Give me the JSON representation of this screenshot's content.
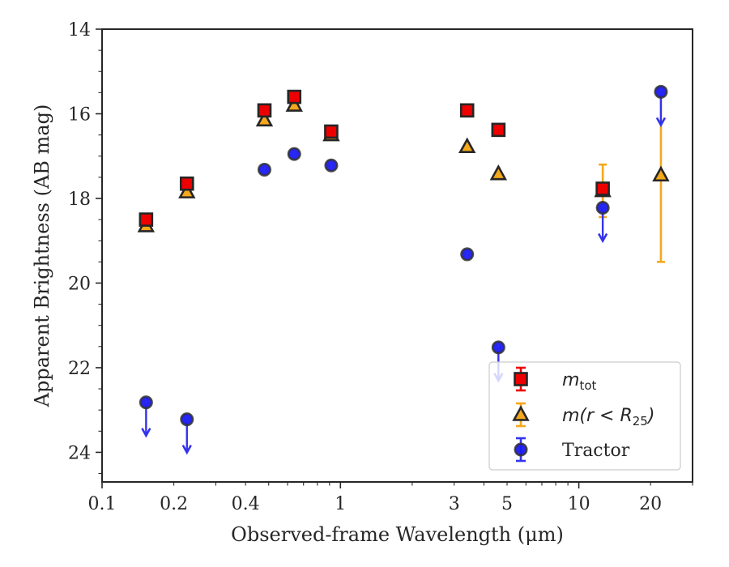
{
  "chart_data": {
    "type": "scatter",
    "xlabel": "Observed-frame Wavelength (μm)",
    "ylabel": "Apparent Brightness (AB mag)",
    "xscale": "log",
    "xlim": [
      0.1,
      30
    ],
    "ylim": [
      24.7,
      14
    ],
    "y_inverted": true,
    "grid": false,
    "legend_position": "lower-right",
    "x_ticks": [
      {
        "value": 0.1,
        "label": "0.1"
      },
      {
        "value": 0.2,
        "label": "0.2"
      },
      {
        "value": 0.4,
        "label": "0.4"
      },
      {
        "value": 1,
        "label": "1"
      },
      {
        "value": 3,
        "label": "3"
      },
      {
        "value": 5,
        "label": "5"
      },
      {
        "value": 10,
        "label": "10"
      },
      {
        "value": 20,
        "label": "20"
      }
    ],
    "y_ticks": [
      {
        "value": 14,
        "label": "14"
      },
      {
        "value": 16,
        "label": "16"
      },
      {
        "value": 18,
        "label": "18"
      },
      {
        "value": 20,
        "label": "20"
      },
      {
        "value": 22,
        "label": "22"
      },
      {
        "value": 24,
        "label": "24"
      }
    ],
    "series": [
      {
        "key": "mtot",
        "legend_main": "m",
        "legend_sub": "tot",
        "legend_tail": "",
        "marker": "square",
        "color": "#ee0000",
        "edge": "#262626",
        "points": [
          {
            "x": 0.153,
            "y": 18.5,
            "err": 0.05
          },
          {
            "x": 0.227,
            "y": 17.65,
            "err": 0.05
          },
          {
            "x": 0.48,
            "y": 15.92,
            "err": 0.05
          },
          {
            "x": 0.64,
            "y": 15.6,
            "err": 0.05
          },
          {
            "x": 0.915,
            "y": 16.42,
            "err": 0.05
          },
          {
            "x": 3.4,
            "y": 15.92,
            "err": 0.05
          },
          {
            "x": 4.6,
            "y": 16.38,
            "err": 0.05
          },
          {
            "x": 12.6,
            "y": 17.77,
            "err": 0.05
          }
        ]
      },
      {
        "key": "m_r25",
        "legend_main": "m(r < R",
        "legend_sub": "25",
        "legend_tail": ")",
        "marker": "triangle",
        "color": "#f5a81c",
        "edge": "#262626",
        "points": [
          {
            "x": 0.153,
            "y": 18.65,
            "err": 0.04
          },
          {
            "x": 0.227,
            "y": 17.85,
            "err": 0.04
          },
          {
            "x": 0.48,
            "y": 16.15,
            "err": 0.04
          },
          {
            "x": 0.64,
            "y": 15.8,
            "err": 0.04
          },
          {
            "x": 0.915,
            "y": 16.5,
            "err": 0.04
          },
          {
            "x": 3.4,
            "y": 16.78,
            "err": 0.04
          },
          {
            "x": 4.6,
            "y": 17.42,
            "err": 0.04
          },
          {
            "x": 12.6,
            "y": 17.82,
            "err": 0.62
          },
          {
            "x": 22.1,
            "y": 17.45,
            "err": 2.05
          }
        ]
      },
      {
        "key": "tractor",
        "legend_main": "Tractor",
        "legend_sub": "",
        "legend_tail": "",
        "marker": "circle",
        "color": "#1a1aee",
        "edge": "#333333",
        "upper_limit_color": "#3333ee",
        "points": [
          {
            "x": 0.153,
            "y": 22.82,
            "upper_limit": true
          },
          {
            "x": 0.227,
            "y": 23.22,
            "upper_limit": true
          },
          {
            "x": 0.48,
            "y": 17.32
          },
          {
            "x": 0.64,
            "y": 16.95
          },
          {
            "x": 0.915,
            "y": 17.22
          },
          {
            "x": 3.4,
            "y": 19.32
          },
          {
            "x": 4.6,
            "y": 21.52,
            "upper_limit": true
          },
          {
            "x": 12.6,
            "y": 18.22,
            "upper_limit": true
          },
          {
            "x": 22.1,
            "y": 15.48,
            "upper_limit": true
          }
        ]
      }
    ]
  }
}
